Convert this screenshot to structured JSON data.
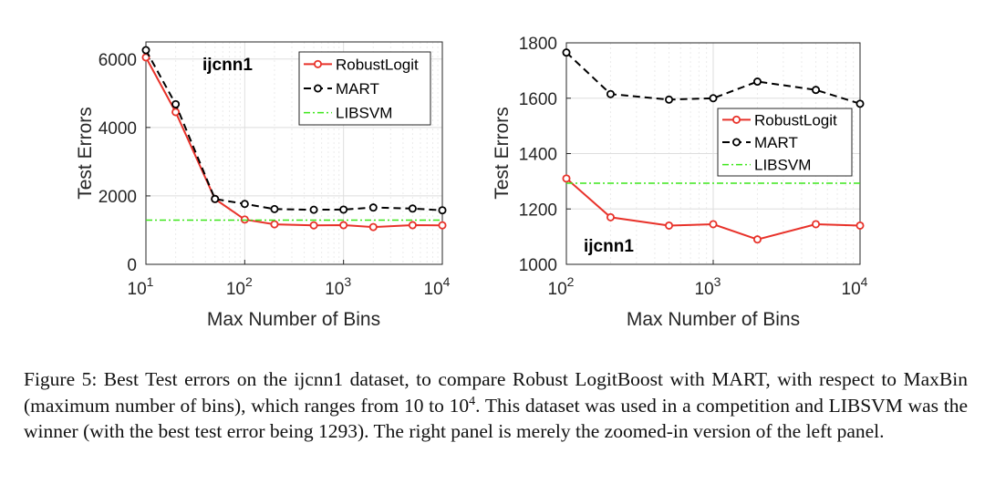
{
  "chart_data": [
    {
      "type": "line",
      "inset_label": "ijcnn1",
      "xlabel": "Max Number of Bins",
      "ylabel": "Test Errors",
      "xscale": "log",
      "xlim": [
        10,
        10000
      ],
      "ylim": [
        0,
        6500
      ],
      "xticks": [
        {
          "label": "10",
          "exp": "1"
        },
        {
          "label": "10",
          "exp": "2"
        },
        {
          "label": "10",
          "exp": "3"
        },
        {
          "label": "10",
          "exp": "4"
        }
      ],
      "yticks": [
        "0",
        "2000",
        "4000",
        "6000"
      ],
      "grid": true,
      "legend_position": "top-right",
      "series": [
        {
          "name": "RobustLogit",
          "color": "#e8322a",
          "style": "solid",
          "x": [
            10,
            20,
            50,
            100,
            200,
            500,
            1000,
            2000,
            5000,
            10000
          ],
          "y": [
            6050,
            4450,
            1910,
            1310,
            1170,
            1140,
            1145,
            1090,
            1145,
            1140
          ]
        },
        {
          "name": "MART",
          "color": "#000000",
          "style": "dashed",
          "x": [
            10,
            20,
            50,
            100,
            200,
            500,
            1000,
            2000,
            5000,
            10000
          ],
          "y": [
            6260,
            4680,
            1910,
            1765,
            1615,
            1595,
            1600,
            1660,
            1630,
            1580
          ]
        },
        {
          "name": "LIBSVM",
          "color": "#3ce61a",
          "style": "dashdot",
          "hline": 1293
        }
      ]
    },
    {
      "type": "line",
      "inset_label": "ijcnn1",
      "xlabel": "Max Number of Bins",
      "ylabel": "Test Errors",
      "xscale": "log",
      "xlim": [
        100,
        10000
      ],
      "ylim": [
        1000,
        1800
      ],
      "xticks": [
        {
          "label": "10",
          "exp": "2"
        },
        {
          "label": "10",
          "exp": "3"
        },
        {
          "label": "10",
          "exp": "4"
        }
      ],
      "yticks": [
        "1000",
        "1200",
        "1400",
        "1600",
        "1800"
      ],
      "grid": true,
      "legend_position": "right",
      "series": [
        {
          "name": "RobustLogit",
          "color": "#e8322a",
          "style": "solid",
          "x": [
            100,
            200,
            500,
            1000,
            2000,
            5000,
            10000
          ],
          "y": [
            1310,
            1170,
            1140,
            1145,
            1090,
            1145,
            1140
          ]
        },
        {
          "name": "MART",
          "color": "#000000",
          "style": "dashed",
          "x": [
            100,
            200,
            500,
            1000,
            2000,
            5000,
            10000
          ],
          "y": [
            1765,
            1615,
            1595,
            1600,
            1660,
            1630,
            1580
          ]
        },
        {
          "name": "LIBSVM",
          "color": "#3ce61a",
          "style": "dashdot",
          "hline": 1293
        }
      ]
    }
  ],
  "caption": {
    "text_before": "Figure 5: Best Test errors on the ijcnn1 dataset, to compare Robust LogitBoost with MART, with respect to MaxBin (maximum number of bins), which ranges from 10 to 10",
    "sup": "4",
    "text_after": ".  This dataset was used in a competition and LIBSVM was the winner (with the best test error being 1293).  The right panel is merely the zoomed-in version of the left panel."
  }
}
